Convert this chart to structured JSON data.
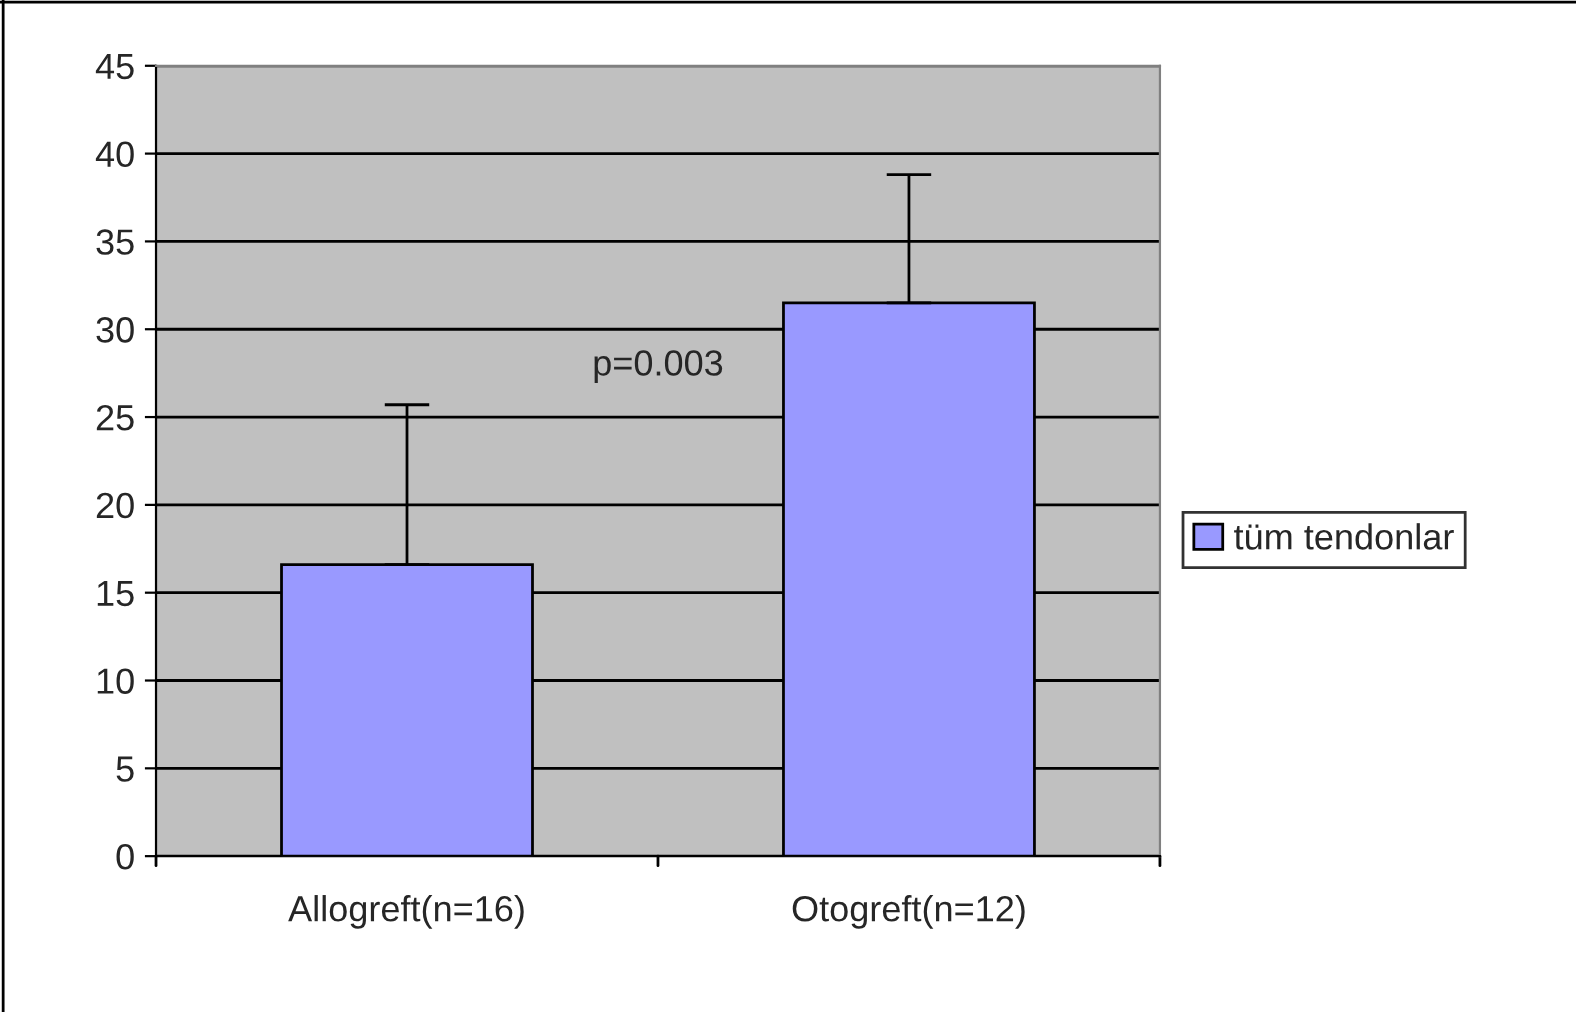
{
  "chart_data": {
    "type": "bar",
    "categories": [
      "Allogreft(n=16)",
      "Otogreft(n=12)"
    ],
    "series": [
      {
        "name": "tüm tendonlar",
        "color": "#9999ff",
        "values": [
          16.6,
          31.5
        ],
        "errors": [
          [
            16.6,
            25.7
          ],
          [
            31.5,
            38.8
          ]
        ]
      }
    ],
    "ylim": [
      0,
      45
    ],
    "yticks": [
      0,
      5,
      10,
      15,
      20,
      25,
      30,
      35,
      40,
      45
    ],
    "grid": "y",
    "legend": "right",
    "annotations": [
      "p=0.003"
    ]
  }
}
